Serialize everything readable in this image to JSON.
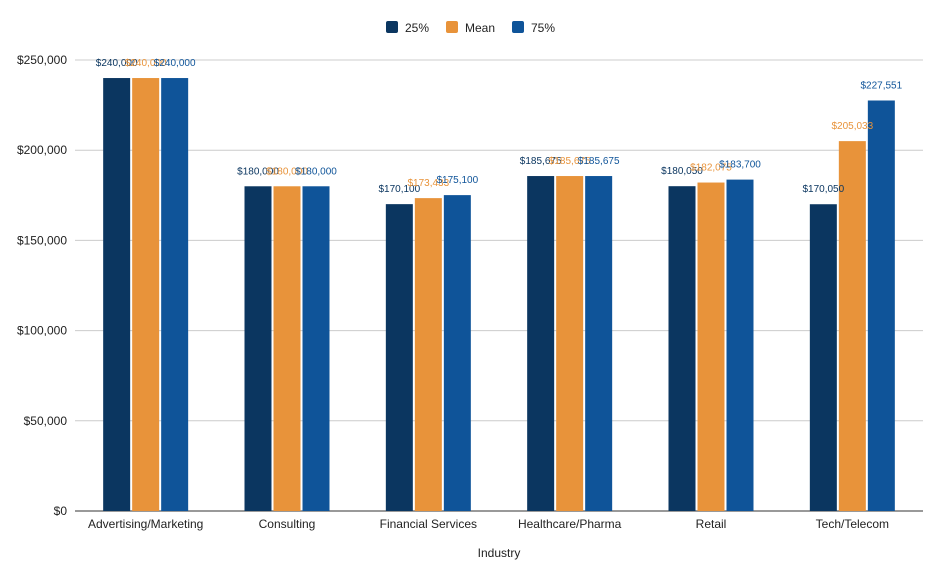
{
  "chart_data": {
    "type": "bar",
    "title": "",
    "xlabel": "Industry",
    "ylabel": "",
    "ylim": [
      0,
      250000
    ],
    "yticks": [
      0,
      50000,
      100000,
      150000,
      200000,
      250000
    ],
    "ytick_labels": [
      "$0",
      "$50,000",
      "$100,000",
      "$150,000",
      "$200,000",
      "$250,000"
    ],
    "grid": true,
    "legend_position": "top-center",
    "categories": [
      "Advertising/Marketing",
      "Consulting",
      "Financial Services",
      "Healthcare/Pharma",
      "Retail",
      "Tech/Telecom"
    ],
    "series": [
      {
        "name": "25%",
        "color": "#0b3660",
        "label_color": "#0b3660",
        "values": [
          240000,
          180000,
          170100,
          185675,
          180050,
          170050
        ],
        "labels": [
          "$240,000",
          "$180,000",
          "$170,100",
          "$185,675",
          "$180,050",
          "$170,050"
        ]
      },
      {
        "name": "Mean",
        "color": "#e8933a",
        "label_color": "#e8933a",
        "values": [
          240000,
          180000,
          173433,
          185675,
          182075,
          205033
        ],
        "labels": [
          "$240,000",
          "$180,000",
          "$173,433",
          "$185,675",
          "$182,075",
          "$205,033"
        ]
      },
      {
        "name": "75%",
        "color": "#0f5499",
        "label_color": "#0f5499",
        "values": [
          240000,
          180000,
          175100,
          185675,
          183700,
          227551
        ],
        "labels": [
          "$240,000",
          "$180,000",
          "$175,100",
          "$185,675",
          "$183,700",
          "$227,551"
        ]
      }
    ]
  }
}
